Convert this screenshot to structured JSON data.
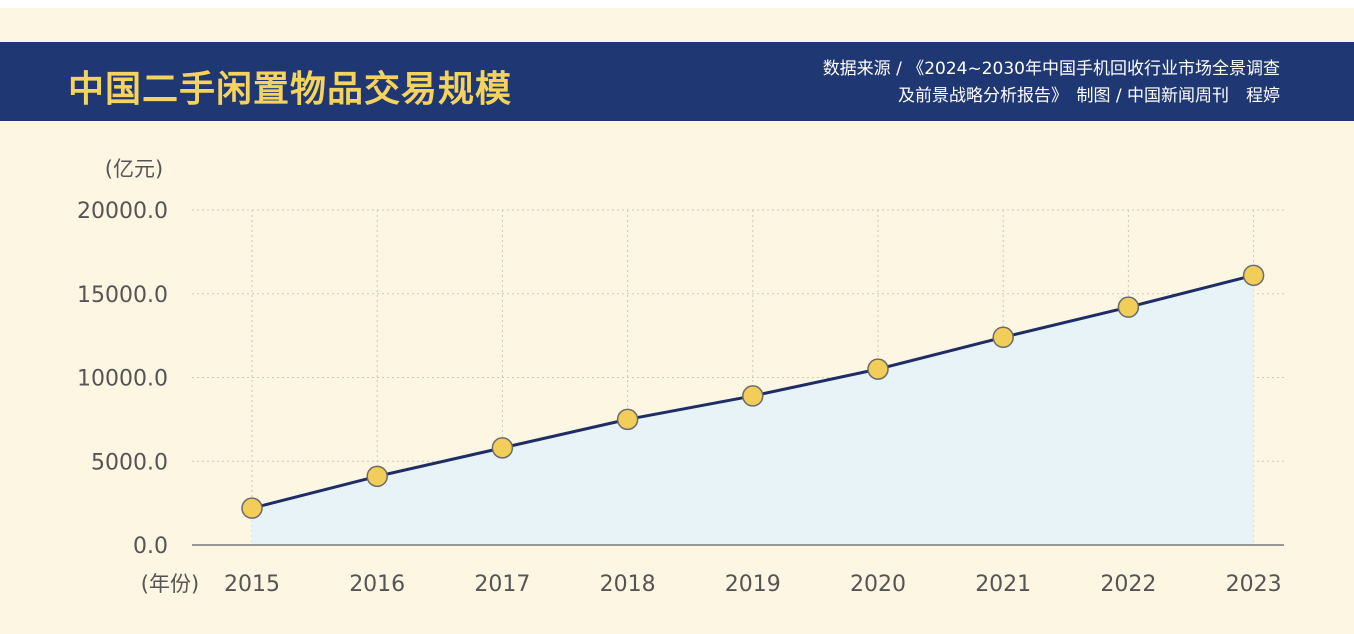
{
  "header": {
    "title": "中国二手闲置物品交易规模",
    "source_line1": "数据来源 / 《2024~2030年中国手机回收行业市场全景调查",
    "source_line2": "及前景战略分析报告》　制图 / 中国新闻周刊　程婷"
  },
  "colors": {
    "banner": "#1f3773",
    "title": "#f6d35c",
    "background": "#fdf6e3",
    "line": "#1f2d66",
    "area": "#e8f3f8",
    "marker": "#f3cd5a"
  },
  "chart_data": {
    "type": "area",
    "categories": [
      "2015",
      "2016",
      "2017",
      "2018",
      "2019",
      "2020",
      "2021",
      "2022",
      "2023"
    ],
    "values": [
      2200,
      4100,
      5800,
      7500,
      8900,
      10500,
      12400,
      14200,
      16100
    ],
    "ylim": [
      0,
      20000
    ],
    "yticks": [
      "0.0",
      "5000.0",
      "10000.0",
      "15000.0",
      "20000.0"
    ],
    "ylabel": "(亿元)",
    "xlabel": "(年份)",
    "grid": true,
    "markers": true
  }
}
